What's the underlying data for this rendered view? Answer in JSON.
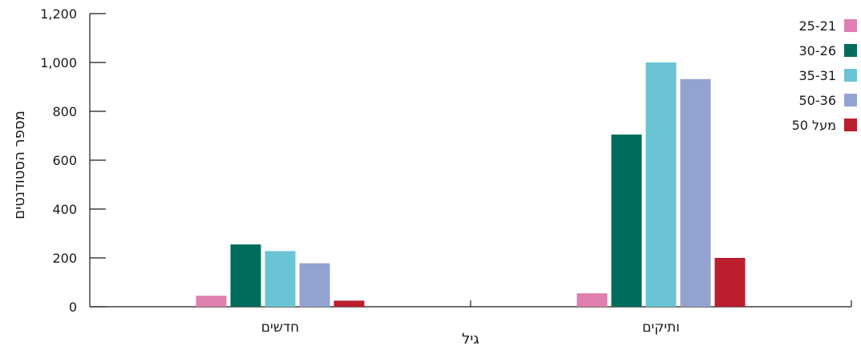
{
  "chart_data": {
    "type": "bar",
    "title": "",
    "xlabel": "גיל",
    "ylabel": "מספר הסטודנטים",
    "categories": [
      "חדשים",
      "ותיקים"
    ],
    "ylim": [
      0,
      1200
    ],
    "yticks": [
      0,
      200,
      400,
      600,
      800,
      1000,
      1200
    ],
    "ytick_labels": [
      "0",
      "200",
      "400",
      "600",
      "800",
      "1,000",
      "1,200"
    ],
    "series": [
      {
        "name": "25-21",
        "color": "#e07fb0",
        "values": [
          45,
          55
        ]
      },
      {
        "name": "30-26",
        "color": "#006c5b",
        "values": [
          255,
          705
        ]
      },
      {
        "name": "35-31",
        "color": "#6bc4d4",
        "values": [
          228,
          1000
        ]
      },
      {
        "name": "50-36",
        "color": "#93a3cf",
        "values": [
          178,
          932
        ]
      },
      {
        "name": "מעל 50",
        "color": "#bb1e2e",
        "values": [
          25,
          200
        ]
      }
    ],
    "legend_position": "top-right",
    "grid": false
  }
}
